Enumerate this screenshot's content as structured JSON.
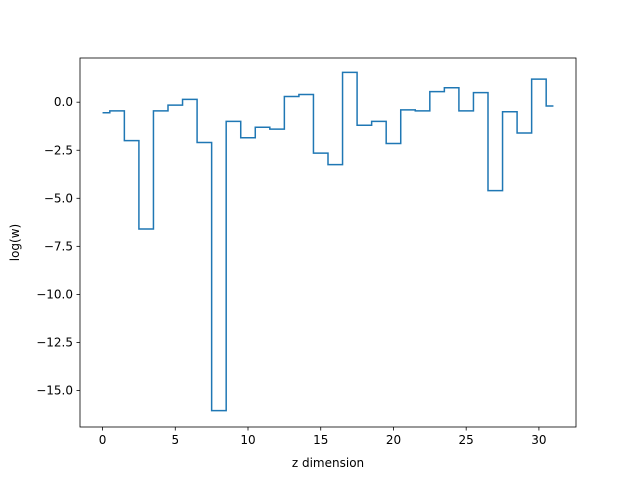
{
  "chart_data": {
    "type": "line",
    "drawstyle": "steps-mid",
    "title": "",
    "xlabel": "z dimension",
    "ylabel": "log(w)",
    "xlim": [
      -1.55,
      32.55
    ],
    "ylim": [
      -16.9,
      2.3
    ],
    "xticks": [
      0,
      5,
      10,
      15,
      20,
      25,
      30
    ],
    "yticks": [
      0.0,
      -2.5,
      -5.0,
      -7.5,
      -10.0,
      -12.5,
      -15.0
    ],
    "xtick_labels": [
      "0",
      "5",
      "10",
      "15",
      "20",
      "25",
      "30"
    ],
    "ytick_labels": [
      "0.0",
      "−2.5",
      "−5.0",
      "−7.5",
      "−10.0",
      "−12.5",
      "−15.0"
    ],
    "grid": false,
    "series": [
      {
        "color": "#1f77b4",
        "x": [
          0,
          1,
          2,
          3,
          4,
          5,
          6,
          7,
          8,
          9,
          10,
          11,
          12,
          13,
          14,
          15,
          16,
          17,
          18,
          19,
          20,
          21,
          22,
          23,
          24,
          25,
          26,
          27,
          28,
          29,
          30,
          31
        ],
        "y": [
          -0.55,
          -0.45,
          -2.0,
          -6.6,
          -0.45,
          -0.15,
          0.15,
          -2.1,
          -16.05,
          -1.0,
          -1.85,
          -1.3,
          -1.4,
          0.3,
          0.4,
          -2.65,
          -3.25,
          1.55,
          -1.2,
          -1.0,
          -2.15,
          -0.4,
          -0.45,
          0.55,
          0.75,
          -0.45,
          0.5,
          -4.6,
          -0.5,
          -1.6,
          1.2,
          -0.2
        ]
      }
    ]
  }
}
